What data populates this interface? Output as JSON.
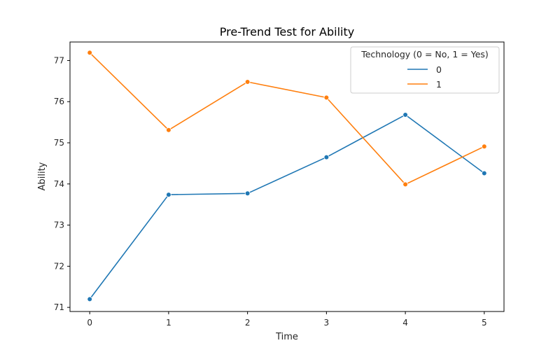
{
  "chart_data": {
    "type": "line",
    "title": "Pre-Trend Test for Ability",
    "xlabel": "Time",
    "ylabel": "Ability",
    "x": [
      0,
      1,
      2,
      3,
      4,
      5
    ],
    "xlim": [
      -0.25,
      5.25
    ],
    "ylim": [
      70.9,
      77.45
    ],
    "xticks": [
      "0",
      "1",
      "2",
      "3",
      "4",
      "5"
    ],
    "yticks": [
      "71",
      "72",
      "73",
      "74",
      "75",
      "76",
      "77"
    ],
    "grid": false,
    "legend": {
      "title": "Technology (0 = No, 1 = Yes)",
      "placement": "top-right"
    },
    "series": [
      {
        "name": "0",
        "color": "#1f77b4",
        "values": [
          71.2,
          73.74,
          73.77,
          74.65,
          75.68,
          74.26
        ]
      },
      {
        "name": "1",
        "color": "#ff7f0e",
        "values": [
          77.19,
          75.31,
          76.48,
          76.1,
          73.99,
          74.91
        ]
      }
    ]
  }
}
